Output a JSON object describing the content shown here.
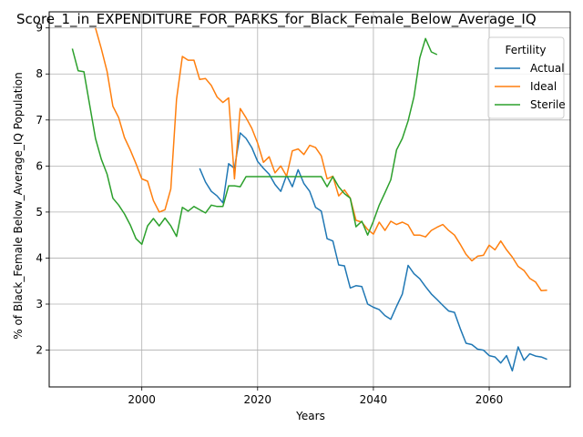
{
  "chart_data": {
    "type": "line",
    "title": "Score_1_in_EXPENDITURE_FOR_PARKS_for_Black_Female_Below_Average_IQ",
    "xlabel": "Years",
    "ylabel": "% of Black_Female Below_Average_IQ Population",
    "xlim": [
      1984,
      2074
    ],
    "ylim": [
      1.2,
      9.35
    ],
    "x_ticks": [
      2000,
      2020,
      2040,
      2060
    ],
    "y_ticks": [
      2,
      3,
      4,
      5,
      6,
      7,
      8,
      9
    ],
    "grid": true,
    "legend": {
      "title": "Fertility",
      "placement": "top-right"
    },
    "series": [
      {
        "name": "Actual",
        "color": "#1f77b4",
        "x": [
          2010,
          2011,
          2012,
          2013,
          2014,
          2015,
          2016,
          2017,
          2018,
          2019,
          2020,
          2021,
          2022,
          2023,
          2024,
          2025,
          2026,
          2027,
          2028,
          2029,
          2030,
          2031,
          2032,
          2033,
          2034,
          2035,
          2036,
          2037,
          2038,
          2039,
          2040,
          2041,
          2042,
          2043,
          2044,
          2045,
          2046,
          2047,
          2048,
          2049,
          2050,
          2051,
          2052,
          2053,
          2054,
          2055,
          2056,
          2057,
          2058,
          2059,
          2060,
          2061,
          2062,
          2063,
          2064,
          2065,
          2066,
          2067,
          2068,
          2069,
          2070
        ],
        "y": [
          5.95,
          5.65,
          5.45,
          5.35,
          5.2,
          6.05,
          5.95,
          6.72,
          6.6,
          6.4,
          6.1,
          5.95,
          5.82,
          5.6,
          5.45,
          5.8,
          5.55,
          5.92,
          5.62,
          5.45,
          5.1,
          5.02,
          4.42,
          4.37,
          3.85,
          3.83,
          3.35,
          3.4,
          3.38,
          3.0,
          2.93,
          2.88,
          2.75,
          2.67,
          2.95,
          3.22,
          3.84,
          3.66,
          3.55,
          3.38,
          3.22,
          3.1,
          2.97,
          2.85,
          2.82,
          2.47,
          2.15,
          2.12,
          2.02,
          2.0,
          1.88,
          1.85,
          1.72,
          1.88,
          1.55,
          2.07,
          1.78,
          1.92,
          1.87,
          1.85,
          1.8
        ]
      },
      {
        "name": "Ideal",
        "color": "#ff7f0e",
        "x": [
          1992,
          1993,
          1994,
          1995,
          1996,
          1997,
          1998,
          1999,
          2000,
          2001,
          2002,
          2003,
          2004,
          2005,
          2006,
          2007,
          2008,
          2009,
          2010,
          2011,
          2012,
          2013,
          2014,
          2015,
          2016,
          2017,
          2018,
          2019,
          2020,
          2021,
          2022,
          2023,
          2024,
          2025,
          2026,
          2027,
          2028,
          2029,
          2030,
          2031,
          2032,
          2033,
          2034,
          2035,
          2036,
          2037,
          2038,
          2039,
          2040,
          2041,
          2042,
          2043,
          2044,
          2045,
          2046,
          2047,
          2048,
          2049,
          2050,
          2051,
          2052,
          2053,
          2054,
          2055,
          2056,
          2057,
          2058,
          2059,
          2060,
          2061,
          2062,
          2063,
          2064,
          2065,
          2066,
          2067,
          2068,
          2069,
          2070
        ],
        "y": [
          9.0,
          8.55,
          8.05,
          7.3,
          7.05,
          6.62,
          6.35,
          6.05,
          5.72,
          5.67,
          5.25,
          5.0,
          5.05,
          5.5,
          7.45,
          8.38,
          8.3,
          8.3,
          7.88,
          7.9,
          7.75,
          7.5,
          7.38,
          7.48,
          5.72,
          7.25,
          7.05,
          6.82,
          6.5,
          6.08,
          6.2,
          5.85,
          6.0,
          5.78,
          6.33,
          6.37,
          6.25,
          6.45,
          6.4,
          6.22,
          5.72,
          5.78,
          5.35,
          5.48,
          5.3,
          4.82,
          4.78,
          4.62,
          4.52,
          4.78,
          4.6,
          4.8,
          4.73,
          4.78,
          4.72,
          4.5,
          4.5,
          4.46,
          4.6,
          4.67,
          4.73,
          4.6,
          4.5,
          4.3,
          4.08,
          3.94,
          4.04,
          4.06,
          4.28,
          4.18,
          4.37,
          4.18,
          4.02,
          3.82,
          3.73,
          3.56,
          3.48,
          3.29,
          3.3
        ]
      },
      {
        "name": "Sterile",
        "color": "#2ca02c",
        "x": [
          1988,
          1989,
          1990,
          1991,
          1992,
          1993,
          1994,
          1995,
          1996,
          1997,
          1998,
          1999,
          2000,
          2001,
          2002,
          2003,
          2004,
          2005,
          2006,
          2007,
          2008,
          2009,
          2010,
          2011,
          2012,
          2013,
          2014,
          2015,
          2016,
          2017,
          2018,
          2019,
          2020,
          2021,
          2022,
          2023,
          2024,
          2025,
          2026,
          2027,
          2028,
          2029,
          2030,
          2031,
          2032,
          2033,
          2034,
          2035,
          2036,
          2037,
          2038,
          2039,
          2040,
          2041,
          2042,
          2043,
          2044,
          2045,
          2046,
          2047,
          2048,
          2049,
          2050,
          2051
        ],
        "y": [
          8.55,
          8.07,
          8.05,
          7.32,
          6.6,
          6.15,
          5.82,
          5.3,
          5.15,
          4.96,
          4.72,
          4.42,
          4.3,
          4.7,
          4.86,
          4.7,
          4.87,
          4.7,
          4.47,
          5.1,
          5.02,
          5.12,
          5.05,
          4.98,
          5.15,
          5.12,
          5.12,
          5.57,
          5.57,
          5.55,
          5.77,
          5.77,
          5.77,
          5.77,
          5.77,
          5.77,
          5.77,
          5.77,
          5.77,
          5.77,
          5.77,
          5.77,
          5.77,
          5.77,
          5.55,
          5.77,
          5.55,
          5.4,
          5.3,
          4.68,
          4.8,
          4.5,
          4.8,
          5.15,
          5.42,
          5.7,
          6.35,
          6.6,
          6.98,
          7.5,
          8.35,
          8.77,
          8.48,
          8.42
        ]
      }
    ]
  }
}
